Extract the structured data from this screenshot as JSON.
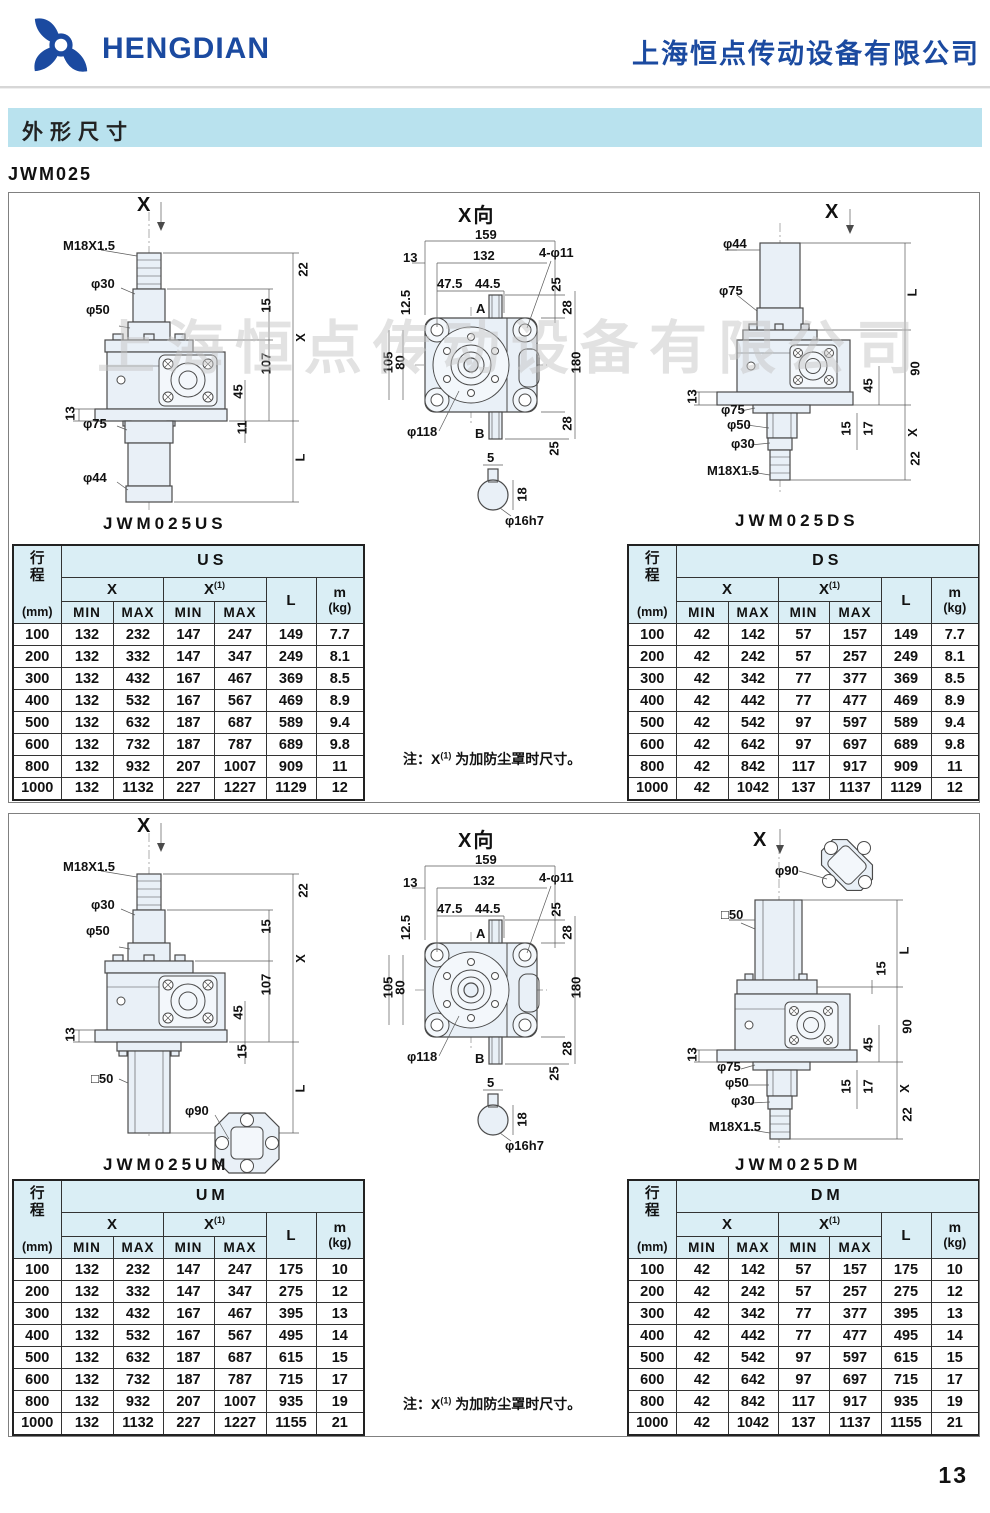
{
  "header": {
    "brand": "HENGDIAN",
    "company": "上海恒点传动设备有限公司"
  },
  "section_title": "外形尺寸",
  "model": "JWM025",
  "watermark": "上海恒点传动设备有限公司",
  "page_number": "13",
  "colors": {
    "brand_blue": "#1b4aa0",
    "section_bar_bg": "#b9e2ee",
    "table_header_bg": "#daeef5",
    "drawing_fill": "#e9f0f7"
  },
  "drawing": {
    "view_title": "X向",
    "titles": {
      "us": "JWM025US",
      "ds": "JWM025DS",
      "um": "JWM025UM",
      "dm": "JWM025DM"
    },
    "dims": {
      "x": "X",
      "m18": "M18X1.5",
      "d30": "φ30",
      "d50": "φ50",
      "d75": "φ75",
      "d44": "φ44",
      "d90": "φ90",
      "d118": "φ118",
      "d16": "φ16h7",
      "sq50": "□50",
      "n5": "5",
      "n11": "11",
      "n12_5": "12.5",
      "n13": "13",
      "n15": "15",
      "n17": "17",
      "n18": "18",
      "n22": "22",
      "n25": "25",
      "n28": "28",
      "n45": "45",
      "n47_5": "47.5",
      "n44_5": "44.5",
      "n80": "80",
      "n90": "90",
      "n105": "105",
      "n107": "107",
      "n132": "132",
      "n159": "159",
      "n180": "180",
      "holes4": "4-φ11",
      "A": "A",
      "B": "B",
      "L": "L"
    }
  },
  "tables": {
    "headers": {
      "stroke": "行程",
      "unit": "(mm)",
      "x": "X",
      "x1": "X",
      "x1_sup": "(1)",
      "min": "MIN",
      "max": "MAX",
      "L": "L",
      "m": "m",
      "kg": "(kg)"
    },
    "us": {
      "group": "US",
      "rows": [
        [
          "100",
          "132",
          "232",
          "147",
          "247",
          "149",
          "7.7"
        ],
        [
          "200",
          "132",
          "332",
          "147",
          "347",
          "249",
          "8.1"
        ],
        [
          "300",
          "132",
          "432",
          "167",
          "467",
          "369",
          "8.5"
        ],
        [
          "400",
          "132",
          "532",
          "167",
          "567",
          "469",
          "8.9"
        ],
        [
          "500",
          "132",
          "632",
          "187",
          "687",
          "589",
          "9.4"
        ],
        [
          "600",
          "132",
          "732",
          "187",
          "787",
          "689",
          "9.8"
        ],
        [
          "800",
          "132",
          "932",
          "207",
          "1007",
          "909",
          "11"
        ],
        [
          "1000",
          "132",
          "1132",
          "227",
          "1227",
          "1129",
          "12"
        ]
      ]
    },
    "ds": {
      "group": "DS",
      "rows": [
        [
          "100",
          "42",
          "142",
          "57",
          "157",
          "149",
          "7.7"
        ],
        [
          "200",
          "42",
          "242",
          "57",
          "257",
          "249",
          "8.1"
        ],
        [
          "300",
          "42",
          "342",
          "77",
          "377",
          "369",
          "8.5"
        ],
        [
          "400",
          "42",
          "442",
          "77",
          "477",
          "469",
          "8.9"
        ],
        [
          "500",
          "42",
          "542",
          "97",
          "597",
          "589",
          "9.4"
        ],
        [
          "600",
          "42",
          "642",
          "97",
          "697",
          "689",
          "9.8"
        ],
        [
          "800",
          "42",
          "842",
          "117",
          "917",
          "909",
          "11"
        ],
        [
          "1000",
          "42",
          "1042",
          "137",
          "1137",
          "1129",
          "12"
        ]
      ]
    },
    "um": {
      "group": "UM",
      "rows": [
        [
          "100",
          "132",
          "232",
          "147",
          "247",
          "175",
          "10"
        ],
        [
          "200",
          "132",
          "332",
          "147",
          "347",
          "275",
          "12"
        ],
        [
          "300",
          "132",
          "432",
          "167",
          "467",
          "395",
          "13"
        ],
        [
          "400",
          "132",
          "532",
          "167",
          "567",
          "495",
          "14"
        ],
        [
          "500",
          "132",
          "632",
          "187",
          "687",
          "615",
          "15"
        ],
        [
          "600",
          "132",
          "732",
          "187",
          "787",
          "715",
          "17"
        ],
        [
          "800",
          "132",
          "932",
          "207",
          "1007",
          "935",
          "19"
        ],
        [
          "1000",
          "132",
          "1132",
          "227",
          "1227",
          "1155",
          "21"
        ]
      ]
    },
    "dm": {
      "group": "DM",
      "rows": [
        [
          "100",
          "42",
          "142",
          "57",
          "157",
          "175",
          "10"
        ],
        [
          "200",
          "42",
          "242",
          "57",
          "257",
          "275",
          "12"
        ],
        [
          "300",
          "42",
          "342",
          "77",
          "377",
          "395",
          "13"
        ],
        [
          "400",
          "42",
          "442",
          "77",
          "477",
          "495",
          "14"
        ],
        [
          "500",
          "42",
          "542",
          "97",
          "597",
          "615",
          "15"
        ],
        [
          "600",
          "42",
          "642",
          "97",
          "697",
          "715",
          "17"
        ],
        [
          "800",
          "42",
          "842",
          "117",
          "917",
          "935",
          "19"
        ],
        [
          "1000",
          "42",
          "1042",
          "137",
          "1137",
          "1155",
          "21"
        ]
      ]
    }
  },
  "note": {
    "prefix": "注：X",
    "sup": "(1)",
    "suffix": " 为加防尘罩时尺寸。"
  }
}
